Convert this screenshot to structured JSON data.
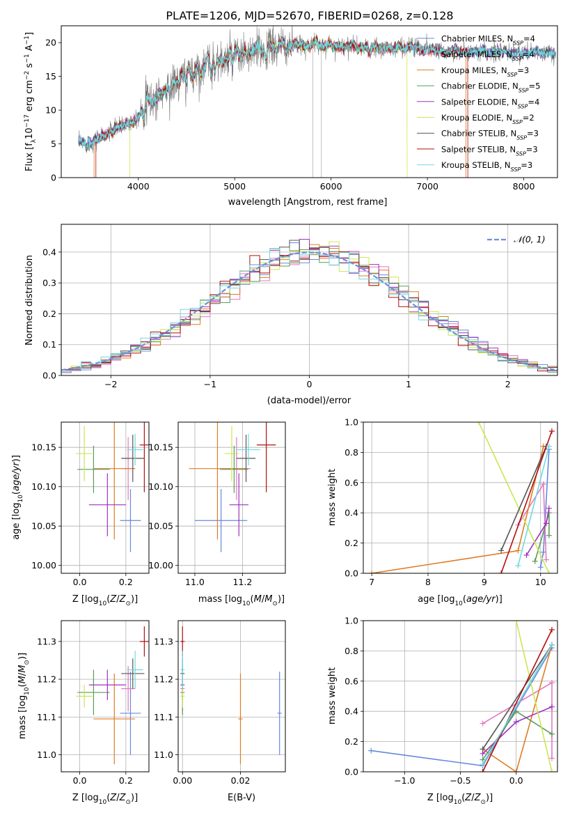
{
  "title": "PLATE=1206, MJD=52670, FIBERID=0268, z=0.128",
  "colors": {
    "Chabrier MILES": "#6688dd",
    "Salpeter MILES": "#e377c2",
    "Kroupa MILES": "#e07b22",
    "Chabrier ELODIE": "#5a9a5a",
    "Salpeter ELODIE": "#a030c0",
    "Kroupa ELODIE": "#c8e850",
    "Chabrier STELIB": "#555555",
    "Salpeter STELIB": "#b01010",
    "Kroupa STELIB": "#70d8e0"
  },
  "chart_data": [
    {
      "id": "spectrum",
      "type": "line",
      "xlabel": "wavelength [Angstrom, rest frame]",
      "ylabel": "Flux [f_λ10^-17 erg cm^-2 s^-1 A^-1]",
      "xlim": [
        3200,
        8350
      ],
      "ylim": [
        0,
        22.5
      ],
      "xticks": [
        4000,
        5000,
        6000,
        7000,
        8000
      ],
      "yticks": [
        0,
        5,
        10,
        15,
        20
      ],
      "legend_position": "right",
      "legend": [
        {
          "name": "Chabrier MILES",
          "nssp": "4"
        },
        {
          "name": "Salpeter MILES",
          "nssp": "4"
        },
        {
          "name": "Kroupa MILES",
          "nssp": "3"
        },
        {
          "name": "Chabrier ELODIE",
          "nssp": "5"
        },
        {
          "name": "Salpeter ELODIE",
          "nssp": "4"
        },
        {
          "name": "Kroupa ELODIE",
          "nssp": "2"
        },
        {
          "name": "Chabrier STELIB",
          "nssp": "3"
        },
        {
          "name": "Salpeter STELIB",
          "nssp": "3"
        },
        {
          "name": "Kroupa STELIB",
          "nssp": "3"
        }
      ],
      "continuum": [
        [
          3380,
          5.0
        ],
        [
          3500,
          5.3
        ],
        [
          3650,
          6.2
        ],
        [
          3800,
          7.5
        ],
        [
          3950,
          8.5
        ],
        [
          4050,
          10.5
        ],
        [
          4200,
          12.0
        ],
        [
          4400,
          14.2
        ],
        [
          4600,
          16.0
        ],
        [
          4800,
          17.0
        ],
        [
          5000,
          17.8
        ],
        [
          5200,
          18.5
        ],
        [
          5400,
          19.3
        ],
        [
          5600,
          19.4
        ],
        [
          5800,
          19.8
        ],
        [
          6000,
          19.6
        ],
        [
          6200,
          19.5
        ],
        [
          6400,
          19.0
        ],
        [
          6600,
          19.2
        ],
        [
          6800,
          19.4
        ],
        [
          7000,
          19.1
        ],
        [
          7200,
          18.8
        ],
        [
          7400,
          18.5
        ],
        [
          7600,
          18.5
        ],
        [
          7800,
          18.6
        ],
        [
          8000,
          18.5
        ],
        [
          8200,
          18.4
        ]
      ],
      "model_cutoffs": [
        {
          "model": "Kroupa ELODIE",
          "min": 3910,
          "max": 6790
        },
        {
          "model": "Salpeter STELIB",
          "min": 3560,
          "max": 7420
        },
        {
          "model": "Kroupa MILES",
          "min": 3540,
          "max": 7400
        }
      ],
      "gaps": [
        5810,
        5900
      ]
    },
    {
      "id": "residuals",
      "type": "histogram",
      "xlabel": "(data-model)/error",
      "ylabel": "Normed distribution",
      "xlim": [
        -2.5,
        2.5
      ],
      "ylim": [
        0,
        0.49
      ],
      "xticks": [
        -2,
        -1,
        0,
        1,
        2
      ],
      "yticks": [
        0.0,
        0.1,
        0.2,
        0.3,
        0.4
      ],
      "grid": true,
      "legend_position": "top-right",
      "legend": "N(0,1)",
      "reference_curve": "standard normal"
    },
    {
      "id": "age_vs_z",
      "type": "scatter",
      "xlabel": "Z [log10(Z/Z⊙)]",
      "ylabel": "age  [log10(age/yr)]",
      "xlim": [
        -0.08,
        0.3
      ],
      "ylim": [
        9.99,
        10.182
      ],
      "xticks": [
        0.0,
        0.2
      ],
      "yticks": [
        10.0,
        10.05,
        10.1,
        10.15
      ],
      "grid": true
    },
    {
      "id": "age_vs_mass",
      "type": "scatter",
      "xlabel": "mass [log10(M/M⊙)]",
      "ylabel": "",
      "xlim": [
        10.93,
        11.38
      ],
      "ylim": [
        9.99,
        10.182
      ],
      "xticks": [
        11.0,
        11.2
      ],
      "yticks": [
        10.0,
        10.05,
        10.1,
        10.15
      ],
      "grid": true
    },
    {
      "id": "weight_vs_age",
      "type": "line",
      "xlabel": "age  [log10(age/yr)]",
      "ylabel": "mass weight",
      "xlim": [
        6.85,
        10.3
      ],
      "ylim": [
        0,
        1.0
      ],
      "xticks": [
        7,
        8,
        9,
        10
      ],
      "yticks": [
        0.0,
        0.2,
        0.4,
        0.6,
        0.8,
        1.0
      ],
      "grid": true
    },
    {
      "id": "mass_vs_z",
      "type": "scatter",
      "xlabel": "Z [log10(Z/Z⊙)]",
      "ylabel": "mass [log10(M/M⊙)]",
      "xlim": [
        -0.08,
        0.3
      ],
      "ylim": [
        10.955,
        11.355
      ],
      "xticks": [
        0.0,
        0.2
      ],
      "yticks": [
        11.0,
        11.1,
        11.2,
        11.3
      ],
      "grid": true
    },
    {
      "id": "mass_vs_ebv",
      "type": "scatter",
      "xlabel": "E(B-V)",
      "ylabel": "",
      "xlim": [
        -0.0015,
        0.0355
      ],
      "ylim": [
        10.955,
        11.355
      ],
      "xticks": [
        0.0,
        0.02
      ],
      "yticks": [
        11.0,
        11.1,
        11.2,
        11.3
      ],
      "grid": true
    },
    {
      "id": "weight_vs_z",
      "type": "line",
      "xlabel": "Z [log10(Z/Z⊙)]",
      "ylabel": "mass weight",
      "xlim": [
        -1.37,
        0.37
      ],
      "ylim": [
        0,
        1.0
      ],
      "xticks": [
        -1.0,
        -0.5,
        0.0
      ],
      "yticks": [
        0.0,
        0.2,
        0.4,
        0.6,
        0.8,
        1.0
      ],
      "grid": true
    }
  ],
  "fits": [
    {
      "model": "Chabrier MILES",
      "Z": 0.22,
      "Zerr": 0.045,
      "age": 10.057,
      "ageErr": 0.04,
      "mass": 11.11,
      "massErr": 0.11,
      "ebv": 0.0335,
      "ebvErr": 0
    },
    {
      "model": "Salpeter MILES",
      "Z": 0.21,
      "Zerr": 0.03,
      "age": 10.123,
      "ageErr": 0.04,
      "mass": 11.175,
      "massErr": 0.06,
      "ebv": 0.0,
      "ebvErr": 0
    },
    {
      "model": "Kroupa MILES",
      "Z": 0.15,
      "Zerr": 0.09,
      "age": 10.123,
      "ageErr": 0.09,
      "mass": 11.095,
      "massErr": 0.12,
      "ebv": 0.02,
      "ebvErr": 0
    },
    {
      "model": "Chabrier ELODIE",
      "Z": 0.06,
      "Zerr": 0.07,
      "age": 10.122,
      "ageErr": 0.03,
      "mass": 11.165,
      "massErr": 0.06,
      "ebv": 0.0,
      "ebvErr": 0
    },
    {
      "model": "Salpeter ELODIE",
      "Z": 0.12,
      "Zerr": 0.08,
      "age": 10.077,
      "ageErr": 0.04,
      "mass": 11.185,
      "massErr": 0.04,
      "ebv": 0.0,
      "ebvErr": 0
    },
    {
      "model": "Kroupa ELODIE",
      "Z": 0.02,
      "Zerr": 0.035,
      "age": 10.142,
      "ageErr": 0.035,
      "mass": 11.155,
      "massErr": 0.03,
      "ebv": 0.0,
      "ebvErr": 0
    },
    {
      "model": "Chabrier STELIB",
      "Z": 0.23,
      "Zerr": 0.05,
      "age": 10.136,
      "ageErr": 0.03,
      "mass": 11.215,
      "massErr": 0.04,
      "ebv": 0.0,
      "ebvErr": 0
    },
    {
      "model": "Salpeter STELIB",
      "Z": 0.28,
      "Zerr": 0.02,
      "age": 10.153,
      "ageErr": 0.06,
      "mass": 11.3,
      "massErr": 0.04,
      "ebv": 0.0,
      "ebvErr": 0
    },
    {
      "model": "Kroupa STELIB",
      "Z": 0.24,
      "Zerr": 0.035,
      "age": 10.147,
      "ageErr": 0.02,
      "mass": 11.225,
      "massErr": 0.05,
      "ebv": 0.0,
      "ebvErr": 0
    }
  ],
  "weights": [
    {
      "model": "Chabrier MILES",
      "points": [
        {
          "age": 10.05,
          "Z": -1.3,
          "w": 0.14
        },
        {
          "age": 10.0,
          "Z": -0.3,
          "w": 0.04
        },
        {
          "age": 10.15,
          "Z": 0.32,
          "w": 0.82
        }
      ]
    },
    {
      "model": "Salpeter MILES",
      "points": [
        {
          "age": 9.6,
          "Z": -0.3,
          "w": 0.32
        },
        {
          "age": 10.05,
          "Z": 0.32,
          "w": 0.59
        },
        {
          "age": 10.1,
          "Z": 0.32,
          "w": 0.09
        }
      ]
    },
    {
      "model": "Kroupa MILES",
      "points": [
        {
          "age": 7.0,
          "Z": 0.0,
          "w": 0.0
        },
        {
          "age": 9.6,
          "Z": -0.3,
          "w": 0.15
        },
        {
          "age": 10.05,
          "Z": 0.32,
          "w": 0.84
        }
      ]
    },
    {
      "model": "Chabrier ELODIE",
      "points": [
        {
          "age": 9.9,
          "Z": -0.3,
          "w": 0.08
        },
        {
          "age": 10.15,
          "Z": 0.0,
          "w": 0.4
        },
        {
          "age": 10.15,
          "Z": 0.32,
          "w": 0.25
        }
      ]
    },
    {
      "model": "Salpeter ELODIE",
      "points": [
        {
          "age": 9.75,
          "Z": -0.3,
          "w": 0.12
        },
        {
          "age": 10.1,
          "Z": 0.0,
          "w": 0.33
        },
        {
          "age": 10.15,
          "Z": 0.32,
          "w": 0.43
        }
      ]
    },
    {
      "model": "Kroupa ELODIE",
      "points": [
        {
          "age": 8.9,
          "Z": 0.0,
          "w": 1.0
        },
        {
          "age": 10.15,
          "Z": 0.32,
          "w": 0.0
        }
      ]
    },
    {
      "model": "Chabrier STELIB",
      "points": [
        {
          "age": 9.3,
          "Z": -0.3,
          "w": 0.15
        },
        {
          "age": 10.1,
          "Z": 0.32,
          "w": 0.84
        }
      ]
    },
    {
      "model": "Salpeter STELIB",
      "points": [
        {
          "age": 9.3,
          "Z": -0.3,
          "w": 0.0
        },
        {
          "age": 10.2,
          "Z": 0.32,
          "w": 0.94
        }
      ]
    },
    {
      "model": "Kroupa STELIB",
      "points": [
        {
          "age": 9.6,
          "Z": -0.3,
          "w": 0.05
        },
        {
          "age": 10.15,
          "Z": 0.32,
          "w": 0.84
        }
      ]
    }
  ]
}
